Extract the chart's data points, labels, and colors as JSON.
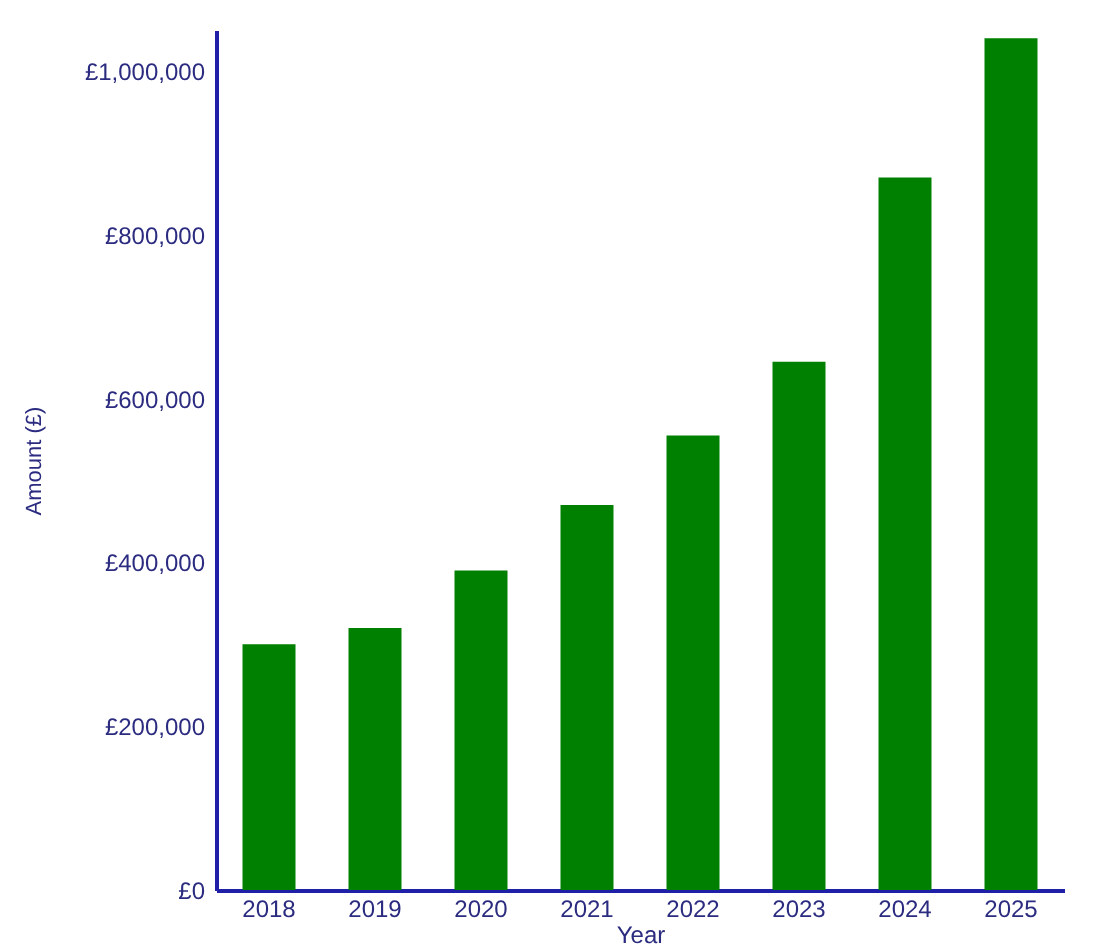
{
  "chart_data": {
    "type": "bar",
    "xlabel": "Year",
    "ylabel": "Amount (£)",
    "categories": [
      "2018",
      "2019",
      "2020",
      "2021",
      "2022",
      "2023",
      "2024",
      "2025"
    ],
    "values": [
      300000,
      320000,
      390000,
      470000,
      555000,
      645000,
      870000,
      1040000
    ],
    "color": "#008000",
    "ylim": [
      0,
      1050000
    ],
    "yticks": [
      {
        "value": 0,
        "label": "£0"
      },
      {
        "value": 200000,
        "label": "£200,000"
      },
      {
        "value": 400000,
        "label": "£400,000"
      },
      {
        "value": 600000,
        "label": "£600,000"
      },
      {
        "value": 800000,
        "label": "£800,000"
      },
      {
        "value": 1000000,
        "label": "£1,000,000"
      }
    ],
    "grid": false
  }
}
